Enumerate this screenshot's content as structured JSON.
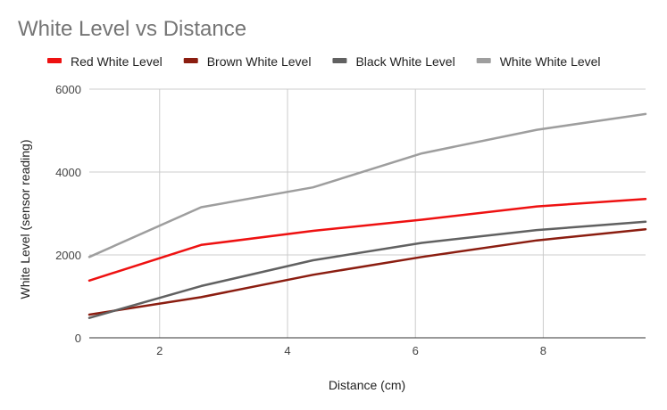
{
  "chart_data": {
    "type": "line",
    "title": "White Level vs Distance",
    "xlabel": "Distance (cm)",
    "ylabel": "White Level (sensor reading)",
    "xlim": [
      0.9,
      9.6
    ],
    "ylim": [
      0,
      6000
    ],
    "xticks": [
      2,
      4,
      6,
      8
    ],
    "yticks": [
      0,
      2000,
      4000,
      6000
    ],
    "x_grid": true,
    "y_grid": true,
    "legend_position": "top",
    "x": [
      0.9,
      2.65,
      4.4,
      6.1,
      7.9,
      9.6
    ],
    "series": [
      {
        "name": "Red White Level",
        "color": "#ee1111",
        "values": [
          1380,
          2240,
          2580,
          2850,
          3170,
          3350
        ]
      },
      {
        "name": "Brown White Level",
        "color": "#8b1d10",
        "values": [
          560,
          980,
          1520,
          1950,
          2350,
          2620
        ]
      },
      {
        "name": "Black White Level",
        "color": "#616161",
        "values": [
          480,
          1250,
          1870,
          2290,
          2600,
          2800
        ]
      },
      {
        "name": "White White Level",
        "color": "#9e9e9e",
        "values": [
          1950,
          3150,
          3630,
          4450,
          5020,
          5400
        ]
      }
    ]
  }
}
